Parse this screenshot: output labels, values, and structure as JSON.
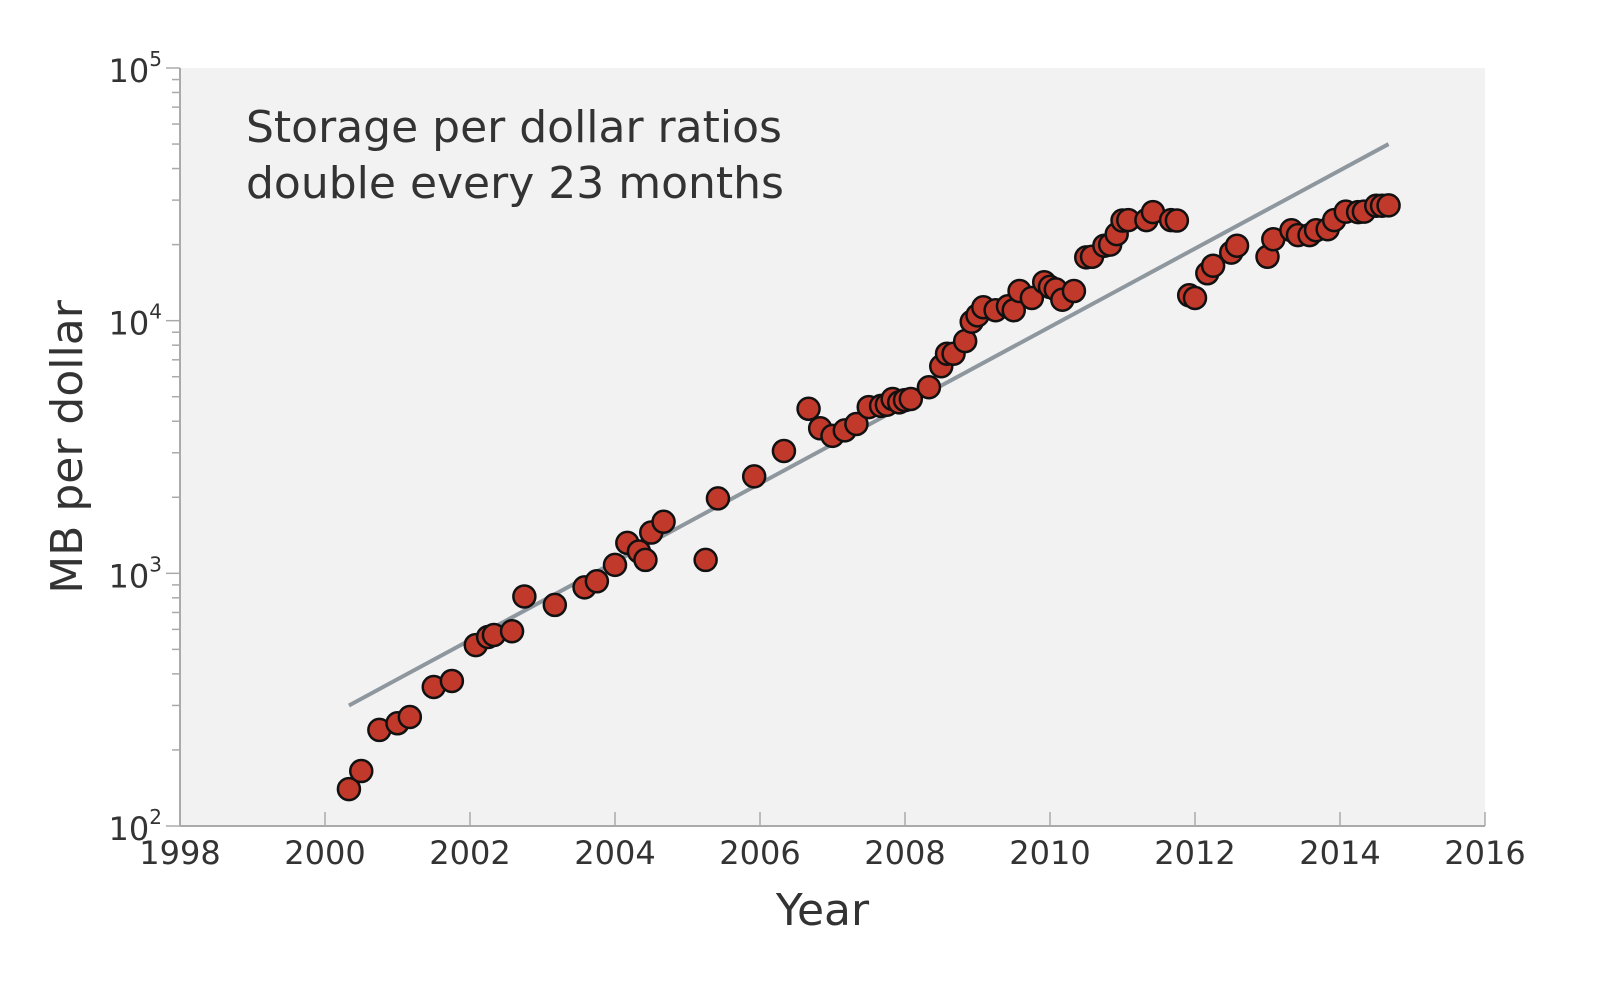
{
  "chart_data": {
    "type": "scatter",
    "xlabel": "Year",
    "ylabel": "MB per dollar",
    "y_scale": "log",
    "xlim": [
      1998,
      2016
    ],
    "ylim": [
      100,
      100000
    ],
    "x_ticks": [
      "1998",
      "2000",
      "2002",
      "2004",
      "2006",
      "2008",
      "2010",
      "2012",
      "2014",
      "2016"
    ],
    "y_ticks": [
      {
        "value": 100,
        "base": "10",
        "exp": "2"
      },
      {
        "value": 1000,
        "base": "10",
        "exp": "3"
      },
      {
        "value": 10000,
        "base": "10",
        "exp": "4"
      },
      {
        "value": 100000,
        "base": "10",
        "exp": "5"
      }
    ],
    "annotation": [
      "Storage per dollar ratios",
      "double every 23 months"
    ],
    "grid": false,
    "colors": {
      "background": "#f2f2f2",
      "point_fill": "#c0392b",
      "point_stroke": "#111111",
      "trend_line": "#8e969e",
      "axis": "#aaaaaa"
    },
    "trend_line": {
      "x": [
        2000.33,
        2014.67
      ],
      "y": [
        300,
        50000
      ]
    },
    "points": [
      [
        2000.33,
        140
      ],
      [
        2000.5,
        165
      ],
      [
        2000.75,
        240
      ],
      [
        2001.0,
        255
      ],
      [
        2001.17,
        270
      ],
      [
        2001.5,
        355
      ],
      [
        2001.75,
        375
      ],
      [
        2002.08,
        520
      ],
      [
        2002.25,
        560
      ],
      [
        2002.33,
        570
      ],
      [
        2002.58,
        590
      ],
      [
        2002.75,
        810
      ],
      [
        2003.17,
        750
      ],
      [
        2003.58,
        880
      ],
      [
        2003.75,
        930
      ],
      [
        2004.0,
        1080
      ],
      [
        2004.17,
        1320
      ],
      [
        2004.33,
        1220
      ],
      [
        2004.42,
        1130
      ],
      [
        2004.5,
        1450
      ],
      [
        2004.67,
        1600
      ],
      [
        2005.25,
        1130
      ],
      [
        2005.42,
        1980
      ],
      [
        2005.92,
        2420
      ],
      [
        2006.33,
        3050
      ],
      [
        2006.67,
        4480
      ],
      [
        2006.83,
        3750
      ],
      [
        2007.0,
        3500
      ],
      [
        2007.17,
        3680
      ],
      [
        2007.33,
        3900
      ],
      [
        2007.5,
        4550
      ],
      [
        2007.67,
        4600
      ],
      [
        2007.75,
        4650
      ],
      [
        2007.83,
        4900
      ],
      [
        2007.92,
        4750
      ],
      [
        2008.0,
        4850
      ],
      [
        2008.08,
        4900
      ],
      [
        2008.33,
        5450
      ],
      [
        2008.5,
        6600
      ],
      [
        2008.58,
        7400
      ],
      [
        2008.67,
        7400
      ],
      [
        2008.83,
        8300
      ],
      [
        2008.92,
        9900
      ],
      [
        2009.0,
        10500
      ],
      [
        2009.08,
        11300
      ],
      [
        2009.25,
        11000
      ],
      [
        2009.42,
        11400
      ],
      [
        2009.5,
        11000
      ],
      [
        2009.58,
        13100
      ],
      [
        2009.75,
        12300
      ],
      [
        2009.92,
        14200
      ],
      [
        2010.0,
        13600
      ],
      [
        2010.08,
        13300
      ],
      [
        2010.17,
        12100
      ],
      [
        2010.33,
        13100
      ],
      [
        2010.5,
        17800
      ],
      [
        2010.58,
        17900
      ],
      [
        2010.75,
        19800
      ],
      [
        2010.83,
        20000
      ],
      [
        2010.92,
        22000
      ],
      [
        2011.0,
        24900
      ],
      [
        2011.08,
        25000
      ],
      [
        2011.33,
        25000
      ],
      [
        2011.42,
        26900
      ],
      [
        2011.67,
        25000
      ],
      [
        2011.75,
        24900
      ],
      [
        2011.92,
        12600
      ],
      [
        2012.0,
        12300
      ],
      [
        2012.17,
        15400
      ],
      [
        2012.25,
        16500
      ],
      [
        2012.5,
        18600
      ],
      [
        2012.58,
        19800
      ],
      [
        2013.0,
        17900
      ],
      [
        2013.08,
        21000
      ],
      [
        2013.33,
        22800
      ],
      [
        2013.42,
        21800
      ],
      [
        2013.58,
        21800
      ],
      [
        2013.67,
        22800
      ],
      [
        2013.83,
        23000
      ],
      [
        2013.92,
        25000
      ],
      [
        2014.08,
        27000
      ],
      [
        2014.25,
        26900
      ],
      [
        2014.33,
        27000
      ],
      [
        2014.5,
        28500
      ],
      [
        2014.58,
        28500
      ],
      [
        2014.67,
        28600
      ]
    ]
  }
}
